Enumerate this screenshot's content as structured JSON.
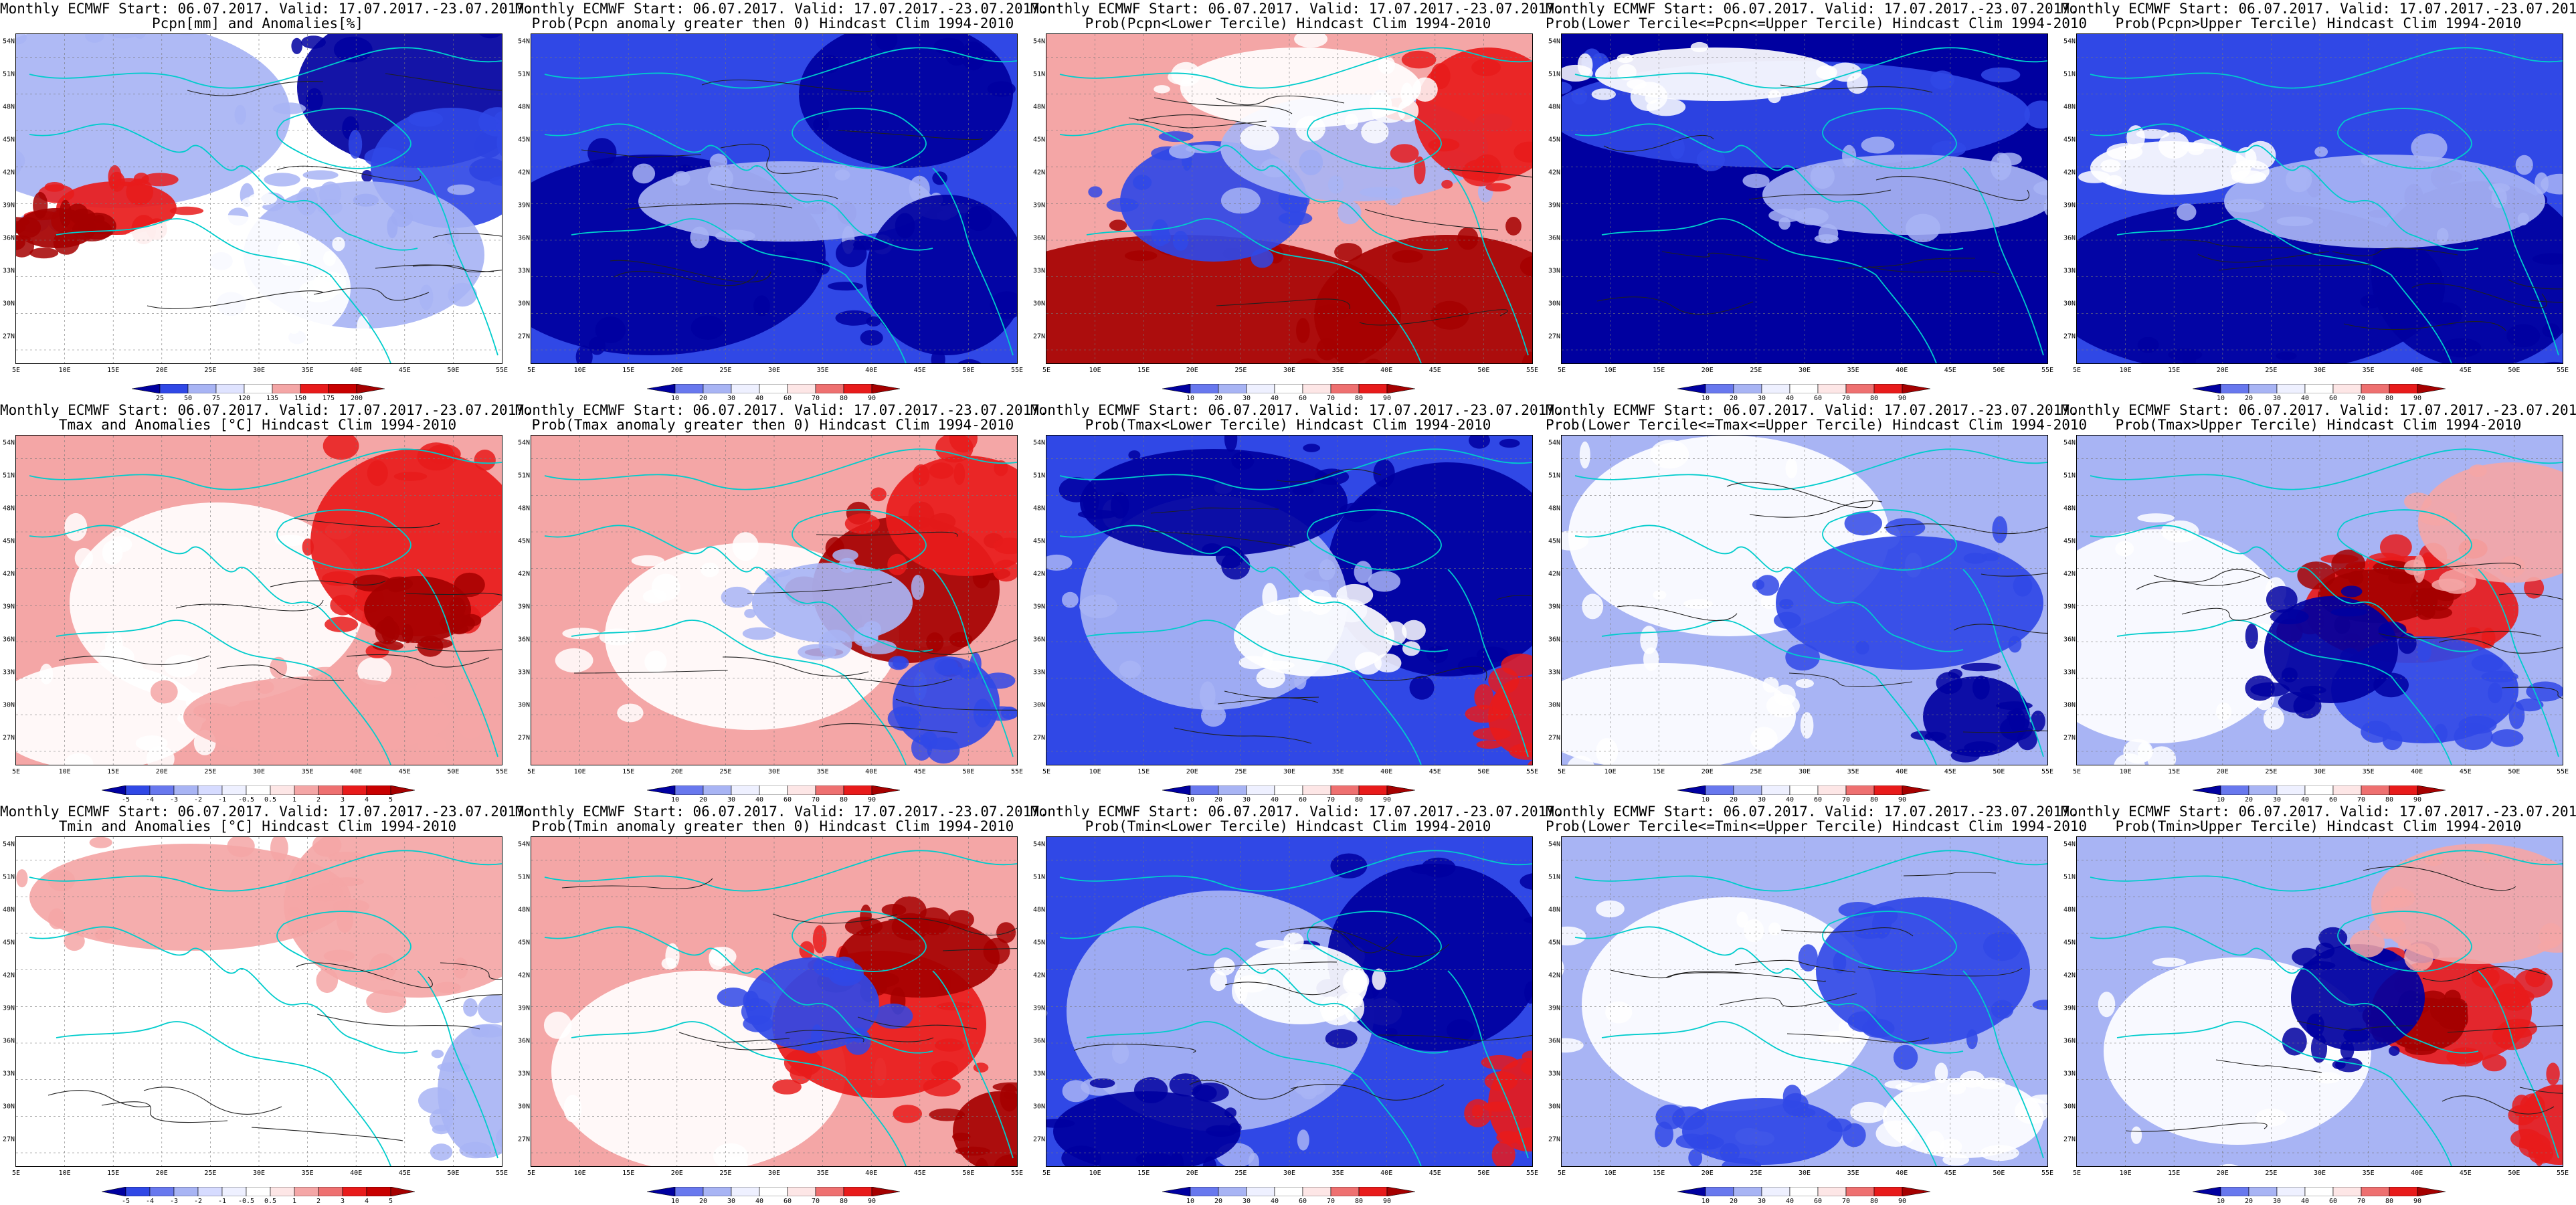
{
  "line1": "Monthly ECMWF Start: 06.07.2017. Valid: 17.07.2017.-23.07.2017.",
  "lat_labels": [
    "54N",
    "51N",
    "48N",
    "45N",
    "42N",
    "39N",
    "36N",
    "33N",
    "30N",
    "27N"
  ],
  "lon_labels": [
    "5E",
    "10E",
    "15E",
    "20E",
    "25E",
    "30E",
    "35E",
    "40E",
    "45E",
    "50E",
    "55E"
  ],
  "colors": {
    "red_dark": "#a50000",
    "red": "#e81b1b",
    "red_light": "#f4a6a6",
    "white": "#ffffff",
    "blue_light": "#a8b4f4",
    "blue": "#3048e6",
    "blue_dark": "#0000a0",
    "coast": "#00cccc",
    "contour": "#202020"
  },
  "rows": [
    {
      "name": "pcpn",
      "panels": [
        {
          "line2": "Pcpn[mm] and Anomalies[%]",
          "scheme": "anomaly",
          "legend": [
            "25",
            "50",
            "75",
            "120",
            "135",
            "150",
            "175",
            "200"
          ]
        },
        {
          "line2": "Prob(Pcpn anomaly greater then 0) Hindcast Clim 1994-2010",
          "scheme": "prob",
          "legend": [
            "10",
            "20",
            "30",
            "40",
            "60",
            "70",
            "80",
            "90"
          ]
        },
        {
          "line2": "Prob(Pcpn<Lower Tercile) Hindcast Clim 1994-2010",
          "scheme": "prob",
          "legend": [
            "10",
            "20",
            "30",
            "40",
            "60",
            "70",
            "80",
            "90"
          ]
        },
        {
          "line2": "Prob(Lower Tercile<=Pcpn<=Upper Tercile) Hindcast Clim 1994-2010",
          "scheme": "prob",
          "legend": [
            "10",
            "20",
            "30",
            "40",
            "60",
            "70",
            "80",
            "90"
          ]
        },
        {
          "line2": "Prob(Pcpn>Upper Tercile) Hindcast Clim 1994-2010",
          "scheme": "prob",
          "legend": [
            "10",
            "20",
            "30",
            "40",
            "60",
            "70",
            "80",
            "90"
          ]
        }
      ]
    },
    {
      "name": "tmax",
      "panels": [
        {
          "line2": "Tmax and Anomalies [°C] Hindcast Clim 1994-2010",
          "scheme": "anomaly",
          "legend": [
            "-5",
            "-4",
            "-3",
            "-2",
            "-1",
            "-0.5",
            "0.5",
            "1",
            "2",
            "3",
            "4",
            "5"
          ]
        },
        {
          "line2": "Prob(Tmax anomaly greater then 0) Hindcast Clim 1994-2010",
          "scheme": "prob",
          "legend": [
            "10",
            "20",
            "30",
            "40",
            "60",
            "70",
            "80",
            "90"
          ]
        },
        {
          "line2": "Prob(Tmax<Lower Tercile) Hindcast Clim 1994-2010",
          "scheme": "prob",
          "legend": [
            "10",
            "20",
            "30",
            "40",
            "60",
            "70",
            "80",
            "90"
          ]
        },
        {
          "line2": "Prob(Lower Tercile<=Tmax<=Upper Tercile) Hindcast Clim 1994-2010",
          "scheme": "prob",
          "legend": [
            "10",
            "20",
            "30",
            "40",
            "60",
            "70",
            "80",
            "90"
          ]
        },
        {
          "line2": "Prob(Tmax>Upper Tercile) Hindcast Clim 1994-2010",
          "scheme": "prob",
          "legend": [
            "10",
            "20",
            "30",
            "40",
            "60",
            "70",
            "80",
            "90"
          ]
        }
      ]
    },
    {
      "name": "tmin",
      "panels": [
        {
          "line2": "Tmin and Anomalies [°C] Hindcast Clim 1994-2010",
          "scheme": "anomaly",
          "legend": [
            "-5",
            "-4",
            "-3",
            "-2",
            "-1",
            "-0.5",
            "0.5",
            "1",
            "2",
            "3",
            "4",
            "5"
          ]
        },
        {
          "line2": "Prob(Tmin anomaly greater then 0) Hindcast Clim 1994-2010",
          "scheme": "prob",
          "legend": [
            "10",
            "20",
            "30",
            "40",
            "60",
            "70",
            "80",
            "90"
          ]
        },
        {
          "line2": "Prob(Tmin<Lower Tercile) Hindcast Clim 1994-2010",
          "scheme": "prob",
          "legend": [
            "10",
            "20",
            "30",
            "40",
            "60",
            "70",
            "80",
            "90"
          ]
        },
        {
          "line2": "Prob(Lower Tercile<=Tmin<=Upper Tercile) Hindcast Clim 1994-2010",
          "scheme": "prob",
          "legend": [
            "10",
            "20",
            "30",
            "40",
            "60",
            "70",
            "80",
            "90"
          ]
        },
        {
          "line2": "Prob(Tmin>Upper Tercile) Hindcast Clim 1994-2010",
          "scheme": "prob",
          "legend": [
            "10",
            "20",
            "30",
            "40",
            "60",
            "70",
            "80",
            "90"
          ]
        }
      ]
    }
  ]
}
